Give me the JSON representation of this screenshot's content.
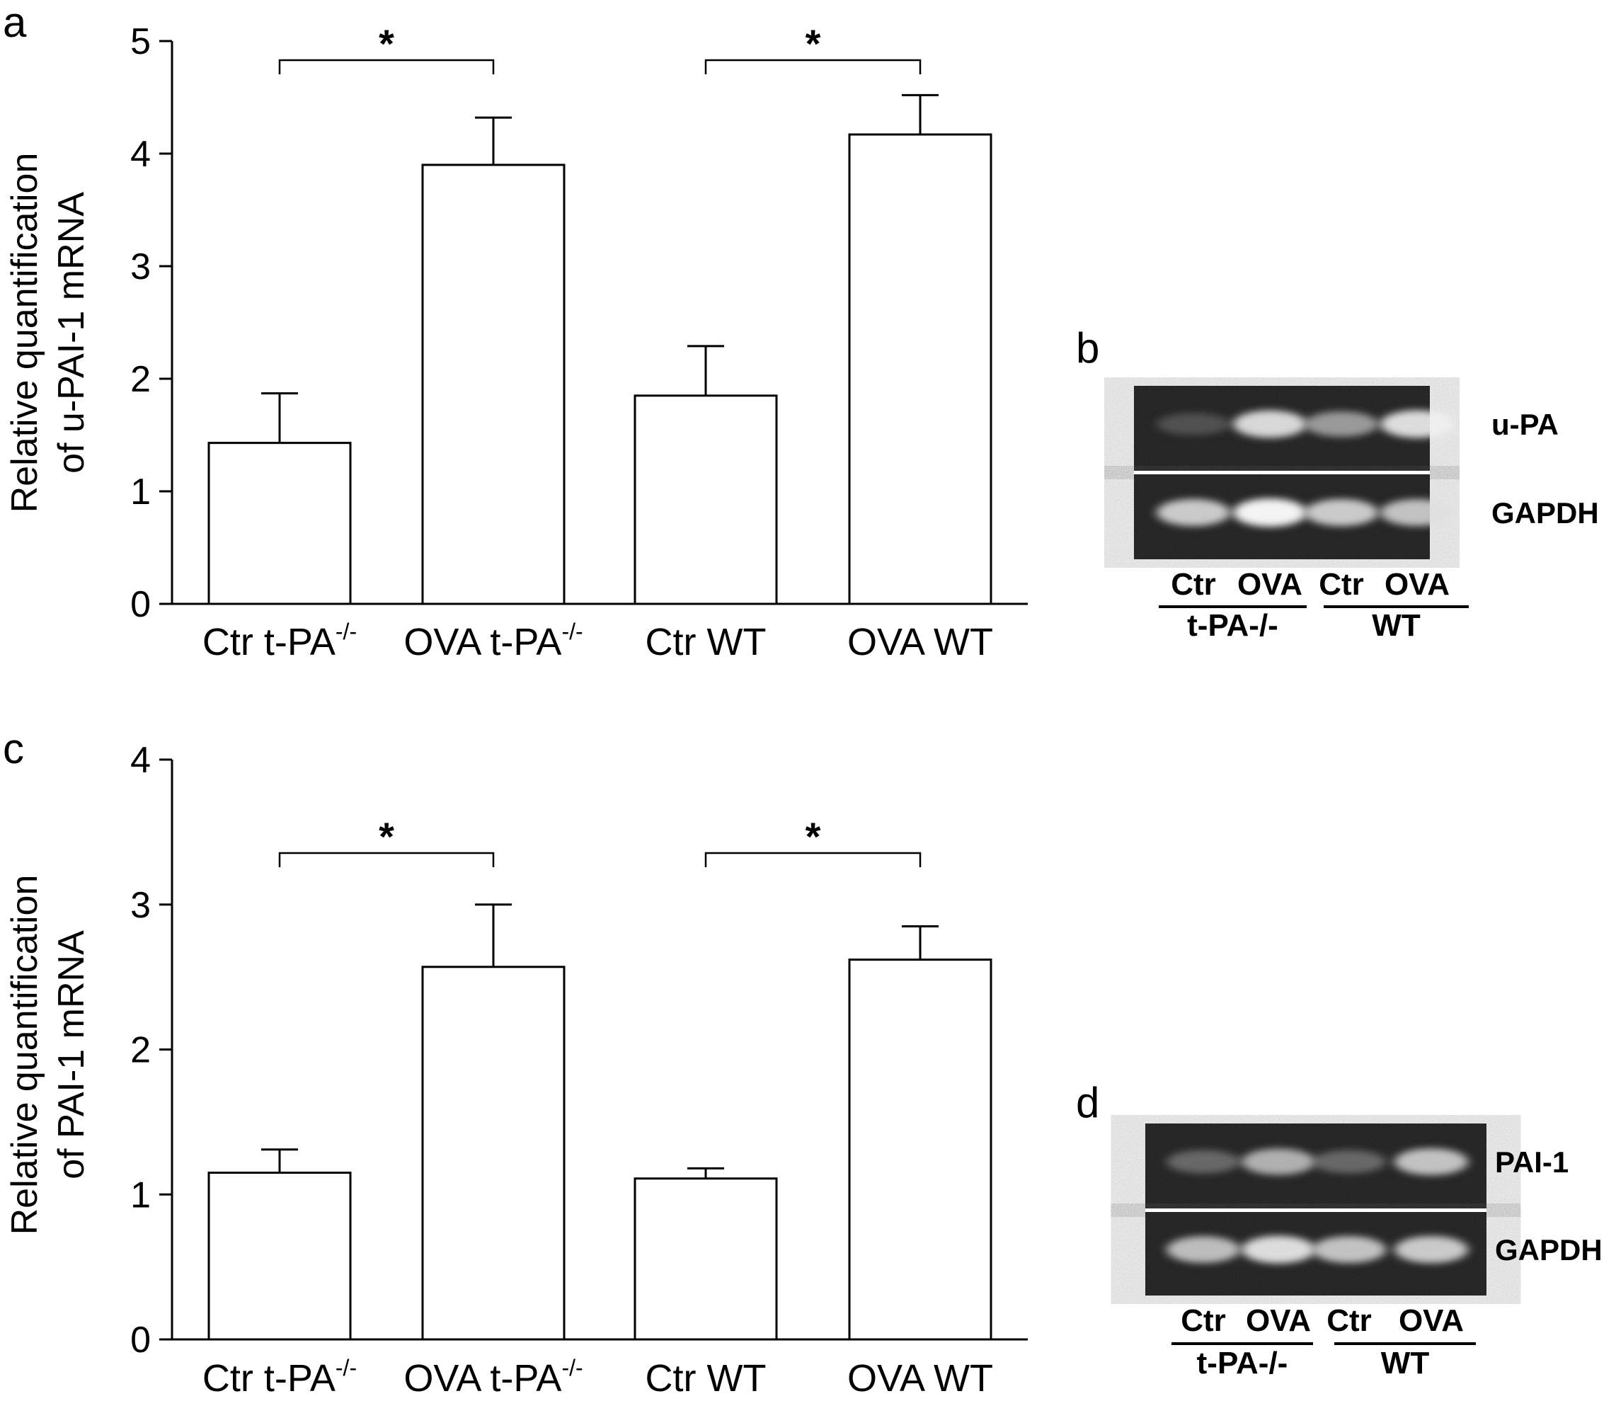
{
  "panels": {
    "a": {
      "letter": "a"
    },
    "b": {
      "letter": "b"
    },
    "c": {
      "letter": "c"
    },
    "d": {
      "letter": "d"
    }
  },
  "chart_data": [
    {
      "panel": "a",
      "type": "bar",
      "categories": [
        {
          "main": "Ctr t-PA",
          "sup": "-/-"
        },
        {
          "main": "OVA t-PA",
          "sup": "-/-"
        },
        {
          "main": "Ctr WT",
          "sup": ""
        },
        {
          "main": "OVA WT",
          "sup": ""
        }
      ],
      "values": [
        1.43,
        3.9,
        1.85,
        4.17
      ],
      "errors": [
        0.44,
        0.42,
        0.44,
        0.35
      ],
      "ylabel_line1": "Relative quantification",
      "ylabel_line2": "of u-PAI-1 mRNA",
      "ylim": [
        0,
        5
      ],
      "yticks": [
        "0",
        "1",
        "2",
        "3",
        "4",
        "5"
      ],
      "significance": [
        {
          "from": 0,
          "to": 1,
          "label": "*"
        },
        {
          "from": 2,
          "to": 3,
          "label": "*"
        }
      ],
      "bar_color": "#ffffff",
      "edge_color": "#000000"
    },
    {
      "panel": "c",
      "type": "bar",
      "categories": [
        {
          "main": "Ctr t-PA",
          "sup": "-/-"
        },
        {
          "main": "OVA t-PA",
          "sup": "-/-"
        },
        {
          "main": "Ctr WT",
          "sup": ""
        },
        {
          "main": "OVA WT",
          "sup": ""
        }
      ],
      "values": [
        1.15,
        2.57,
        1.11,
        2.62
      ],
      "errors": [
        0.16,
        0.43,
        0.07,
        0.23
      ],
      "ylabel_line1": "Relative quantification",
      "ylabel_line2": "of PAI-1 mRNA",
      "ylim": [
        0,
        4
      ],
      "yticks": [
        "0",
        "1",
        "2",
        "3",
        "4"
      ],
      "significance": [
        {
          "from": 0,
          "to": 1,
          "label": "*"
        },
        {
          "from": 2,
          "to": 3,
          "label": "*"
        }
      ],
      "bar_color": "#ffffff",
      "edge_color": "#000000"
    }
  ],
  "gels": {
    "b": {
      "bands": [
        "u-PA",
        "GAPDH"
      ],
      "lanes_group1": {
        "lanes": [
          "Ctr",
          "OVA"
        ],
        "group": "t-PA-/-"
      },
      "lanes_group2": {
        "lanes": [
          "Ctr",
          "OVA"
        ],
        "group": "WT"
      }
    },
    "d": {
      "bands": [
        "PAI-1",
        "GAPDH"
      ],
      "lanes_group1": {
        "lanes": [
          "Ctr",
          "OVA"
        ],
        "group": "t-PA-/-"
      },
      "lanes_group2": {
        "lanes": [
          "Ctr",
          "OVA"
        ],
        "group": "WT"
      }
    }
  }
}
